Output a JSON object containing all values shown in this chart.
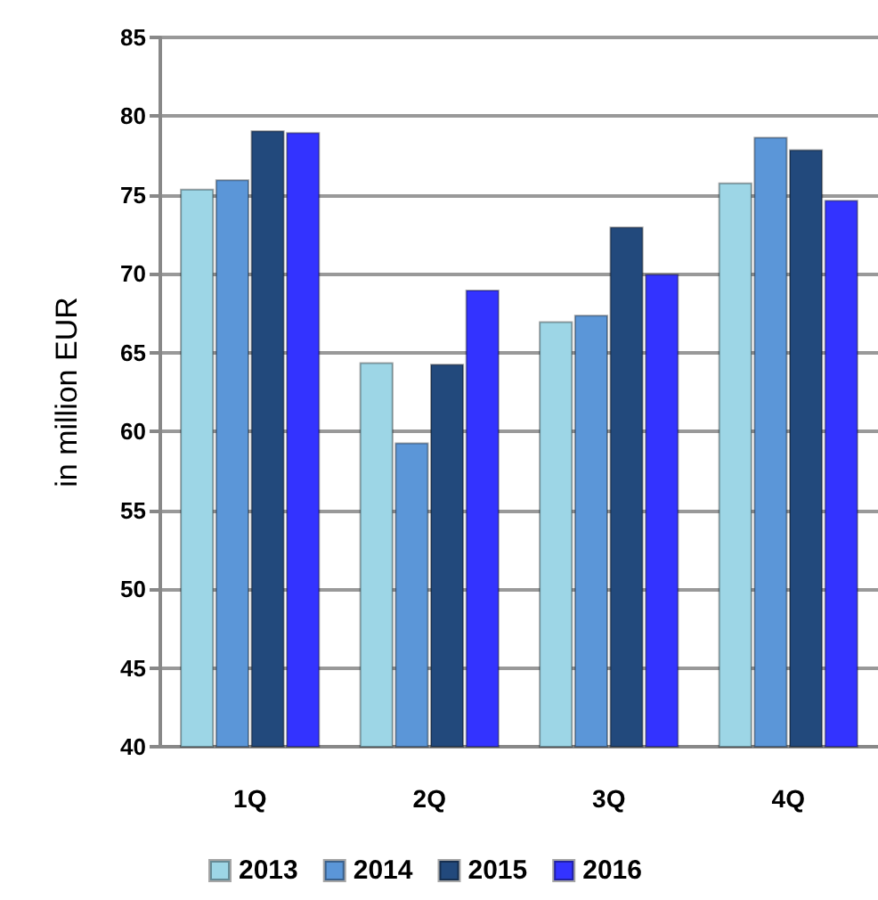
{
  "chart_data": {
    "type": "bar",
    "ylabel": "in million EUR",
    "categories": [
      "1Q",
      "2Q",
      "3Q",
      "4Q"
    ],
    "series": [
      {
        "name": "2013",
        "color": "#9dd6e6",
        "values": [
          75.4,
          64.4,
          67.0,
          75.8
        ]
      },
      {
        "name": "2014",
        "color": "#5b96d8",
        "values": [
          76.0,
          59.3,
          67.4,
          78.7
        ]
      },
      {
        "name": "2015",
        "color": "#22497c",
        "values": [
          79.1,
          64.3,
          73.0,
          77.9
        ]
      },
      {
        "name": "2016",
        "color": "#3333ff",
        "values": [
          79.0,
          69.0,
          70.0,
          74.7
        ]
      }
    ],
    "ylim": [
      40,
      85
    ],
    "yticks": [
      40,
      45,
      50,
      55,
      60,
      65,
      70,
      75,
      80,
      85
    ],
    "grid": "y",
    "legend": "bottom"
  }
}
